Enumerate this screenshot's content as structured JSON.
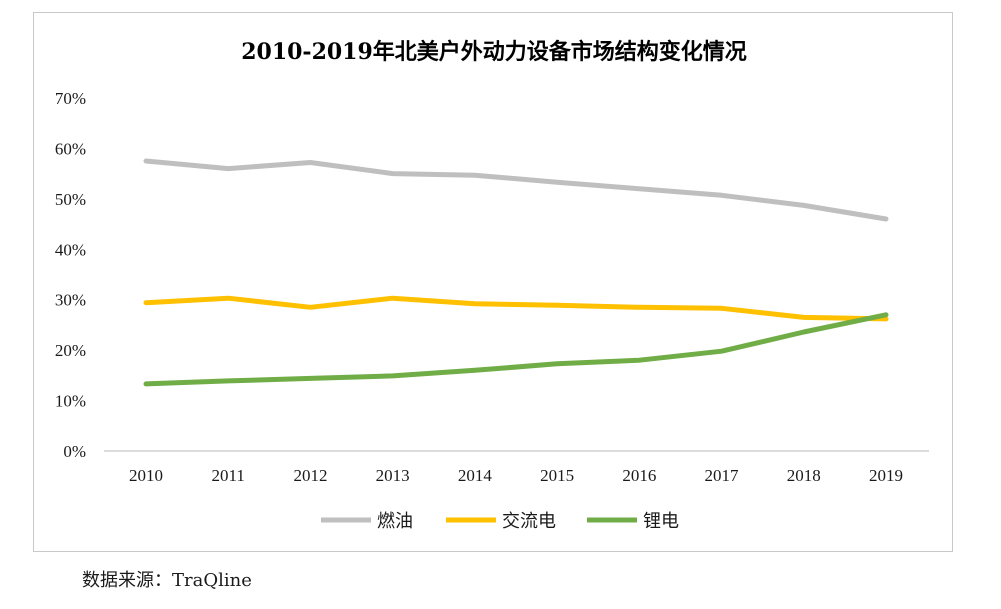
{
  "chart_data": {
    "type": "line",
    "title": "2010-2019年北美户外动力设备市场结构变化情况",
    "categories": [
      "2010",
      "2011",
      "2012",
      "2013",
      "2014",
      "2015",
      "2016",
      "2017",
      "2018",
      "2019"
    ],
    "series": [
      {
        "name": "燃油",
        "color": "#bfbfbf",
        "values": [
          57.5,
          56,
          57.2,
          55,
          54.7,
          53.3,
          52,
          50.7,
          48.7,
          46
        ]
      },
      {
        "name": "交流电",
        "color": "#ffc000",
        "values": [
          29.4,
          30.3,
          28.5,
          30.3,
          29.2,
          28.9,
          28.5,
          28.3,
          26.5,
          26.2
        ]
      },
      {
        "name": "锂电",
        "color": "#70ad47",
        "values": [
          13.3,
          13.9,
          14.4,
          14.9,
          16,
          17.3,
          18,
          19.8,
          23.6,
          27
        ]
      }
    ],
    "y_ticks": [
      "0%",
      "10%",
      "20%",
      "30%",
      "40%",
      "50%",
      "60%",
      "70%"
    ],
    "ylim": [
      0,
      70
    ],
    "legend_position": "bottom",
    "grid": false
  },
  "source_note": "数据来源：TraQline"
}
